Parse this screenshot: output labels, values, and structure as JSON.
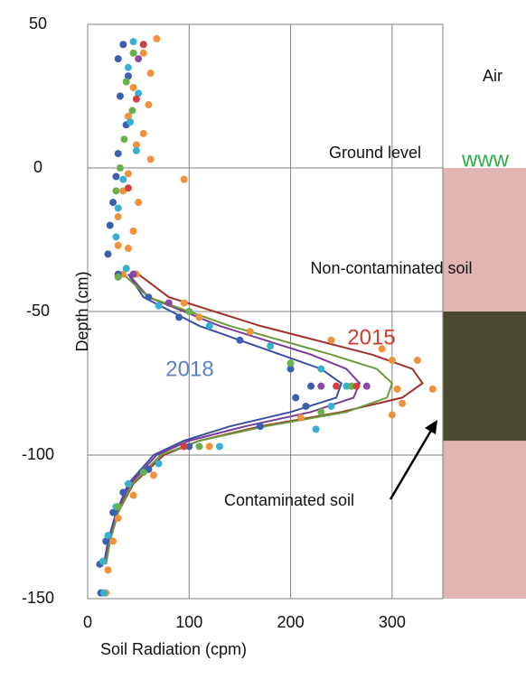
{
  "chart_data": {
    "type": "scatter",
    "xlabel": "Soil Radiation (cpm)",
    "ylabel": "Depth (cm)",
    "xlim": [
      0,
      350
    ],
    "ylim": [
      -150,
      50
    ],
    "xticks": [
      0,
      100,
      200,
      300
    ],
    "yticks": [
      50,
      0,
      -50,
      -100,
      -150
    ],
    "grid": true,
    "bands": [
      {
        "from": 0,
        "to": -150,
        "color": "#e2b4b4"
      },
      {
        "from": -50,
        "to": -95,
        "color": "#4b4a30"
      }
    ],
    "annotations": [
      "Air",
      "Ground level",
      "www",
      "Non-contaminated soil",
      "Contaminated soil"
    ],
    "series": [
      {
        "color": "#f0923a",
        "x": [
          68,
          55,
          62,
          45,
          60,
          40,
          55,
          48,
          62,
          40,
          95,
          35,
          50,
          30,
          45,
          30,
          40,
          35,
          48,
          95,
          110,
          160,
          240,
          290,
          325,
          300,
          340,
          305,
          310,
          300,
          210,
          120,
          65,
          45,
          30,
          25,
          20,
          18
        ],
        "values": [
          45,
          40,
          33,
          28,
          22,
          18,
          12,
          8,
          3,
          -2,
          -4,
          -8,
          -12,
          -17,
          -22,
          -27,
          -28,
          -37,
          -37,
          -47,
          -52,
          -57,
          -60,
          -63,
          -67,
          -67,
          -77,
          -77,
          -82,
          -86,
          -87,
          -97,
          -107,
          -114,
          -122,
          -130,
          -140,
          -148
        ]
      },
      {
        "color": "#3a5fb0",
        "x": [
          35,
          30,
          40,
          32,
          38,
          30,
          28,
          25,
          22,
          20,
          30,
          60,
          90,
          150,
          200,
          220,
          205,
          215,
          170,
          100,
          60,
          35,
          25,
          18,
          12,
          13
        ],
        "values": [
          43,
          38,
          32,
          25,
          15,
          5,
          -3,
          -12,
          -20,
          -30,
          -37,
          -45,
          -52,
          -60,
          -70,
          -76,
          -80,
          -83,
          -90,
          -97,
          -105,
          -113,
          -120,
          -130,
          -138,
          -148
        ]
      },
      {
        "color": "#3ab0d0",
        "x": [
          45,
          40,
          50,
          42,
          48,
          35,
          30,
          28,
          38,
          70,
          120,
          180,
          230,
          255,
          240,
          225,
          130,
          70,
          40,
          28,
          20,
          15,
          16
        ],
        "values": [
          44,
          35,
          26,
          16,
          6,
          -4,
          -14,
          -24,
          -35,
          -48,
          -55,
          -62,
          -70,
          -76,
          -83,
          -91,
          -97,
          -103,
          -110,
          -118,
          -128,
          -137,
          -148
        ]
      },
      {
        "color": "#6ab04c",
        "x": [
          45,
          38,
          44,
          36,
          32,
          28,
          30,
          100,
          200,
          260,
          230,
          110,
          55,
          30
        ],
        "values": [
          40,
          30,
          20,
          10,
          0,
          -8,
          -38,
          -50,
          -68,
          -76,
          -85,
          -97,
          -106,
          -118
        ]
      },
      {
        "color": "#d04040",
        "x": [
          55,
          48,
          40,
          245,
          265,
          95
        ],
        "values": [
          43,
          24,
          -7,
          -76,
          -76,
          -97
        ]
      },
      {
        "color": "#8a4aa0",
        "x": [
          50,
          45,
          80,
          230,
          275
        ],
        "values": [
          38,
          -37,
          -47,
          -76,
          -76
        ]
      },
      {
        "name": "2015",
        "line": true,
        "color": "#a0302a",
        "label_color": "#d63a2a",
        "x": [
          50,
          80,
          170,
          280,
          320,
          330,
          310,
          250,
          170,
          110,
          75,
          45,
          30,
          22,
          18
        ],
        "values": [
          -37,
          -45,
          -55,
          -65,
          -70,
          -75,
          -80,
          -85,
          -90,
          -95,
          -100,
          -110,
          -120,
          -130,
          -138
        ]
      },
      {
        "name": "2018",
        "line": true,
        "color": "#3b4fa0",
        "label_color": "#5a82c8",
        "x": [
          40,
          55,
          110,
          190,
          230,
          250,
          245,
          200,
          140,
          95,
          65,
          40,
          28,
          20,
          16
        ],
        "values": [
          -37,
          -45,
          -55,
          -65,
          -70,
          -75,
          -80,
          -85,
          -90,
          -95,
          -100,
          -110,
          -120,
          -130,
          -138
        ]
      },
      {
        "line": true,
        "color": "#7a3a9a",
        "x": [
          40,
          60,
          130,
          220,
          255,
          268,
          262,
          220,
          155,
          100,
          68,
          42,
          29,
          21,
          17
        ],
        "values": [
          -37,
          -45,
          -55,
          -65,
          -70,
          -75,
          -80,
          -85,
          -90,
          -95,
          -100,
          -110,
          -120,
          -130,
          -138
        ]
      },
      {
        "line": true,
        "color": "#6a9a3a",
        "x": [
          35,
          60,
          140,
          240,
          285,
          300,
          295,
          255,
          175,
          110,
          72,
          44,
          30,
          22,
          18
        ],
        "values": [
          -37,
          -45,
          -55,
          -65,
          -70,
          -75,
          -80,
          -85,
          -90,
          -95,
          -100,
          -110,
          -120,
          -130,
          -138
        ]
      }
    ]
  }
}
